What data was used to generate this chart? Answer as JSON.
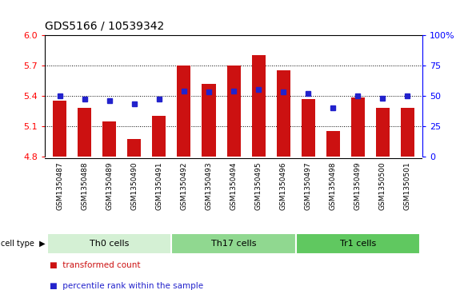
{
  "title": "GDS5166 / 10539342",
  "samples": [
    "GSM1350487",
    "GSM1350488",
    "GSM1350489",
    "GSM1350490",
    "GSM1350491",
    "GSM1350492",
    "GSM1350493",
    "GSM1350494",
    "GSM1350495",
    "GSM1350496",
    "GSM1350497",
    "GSM1350498",
    "GSM1350499",
    "GSM1350500",
    "GSM1350501"
  ],
  "red_values": [
    5.35,
    5.28,
    5.15,
    4.97,
    5.2,
    5.7,
    5.52,
    5.7,
    5.8,
    5.65,
    5.37,
    5.05,
    5.38,
    5.28,
    5.28
  ],
  "blue_values": [
    50,
    47,
    46,
    43,
    47,
    54,
    53,
    54,
    55,
    53,
    52,
    40,
    50,
    48,
    50
  ],
  "cell_groups": [
    {
      "label": "Th0 cells",
      "start": 0,
      "end": 5,
      "color": "#d4f0d4"
    },
    {
      "label": "Th17 cells",
      "start": 5,
      "end": 10,
      "color": "#90d890"
    },
    {
      "label": "Tr1 cells",
      "start": 10,
      "end": 15,
      "color": "#60c860"
    }
  ],
  "ylim_left": [
    4.8,
    6.0
  ],
  "ylim_right": [
    0,
    100
  ],
  "yticks_left": [
    4.8,
    5.1,
    5.4,
    5.7,
    6.0
  ],
  "yticks_right": [
    0,
    25,
    50,
    75,
    100
  ],
  "ytick_labels_right": [
    "0",
    "25",
    "50",
    "75",
    "100%"
  ],
  "bar_color": "#cc1111",
  "dot_color": "#2222cc",
  "grid_linestyle": "dotted",
  "legend_labels": [
    "transformed count",
    "percentile rank within the sample"
  ]
}
